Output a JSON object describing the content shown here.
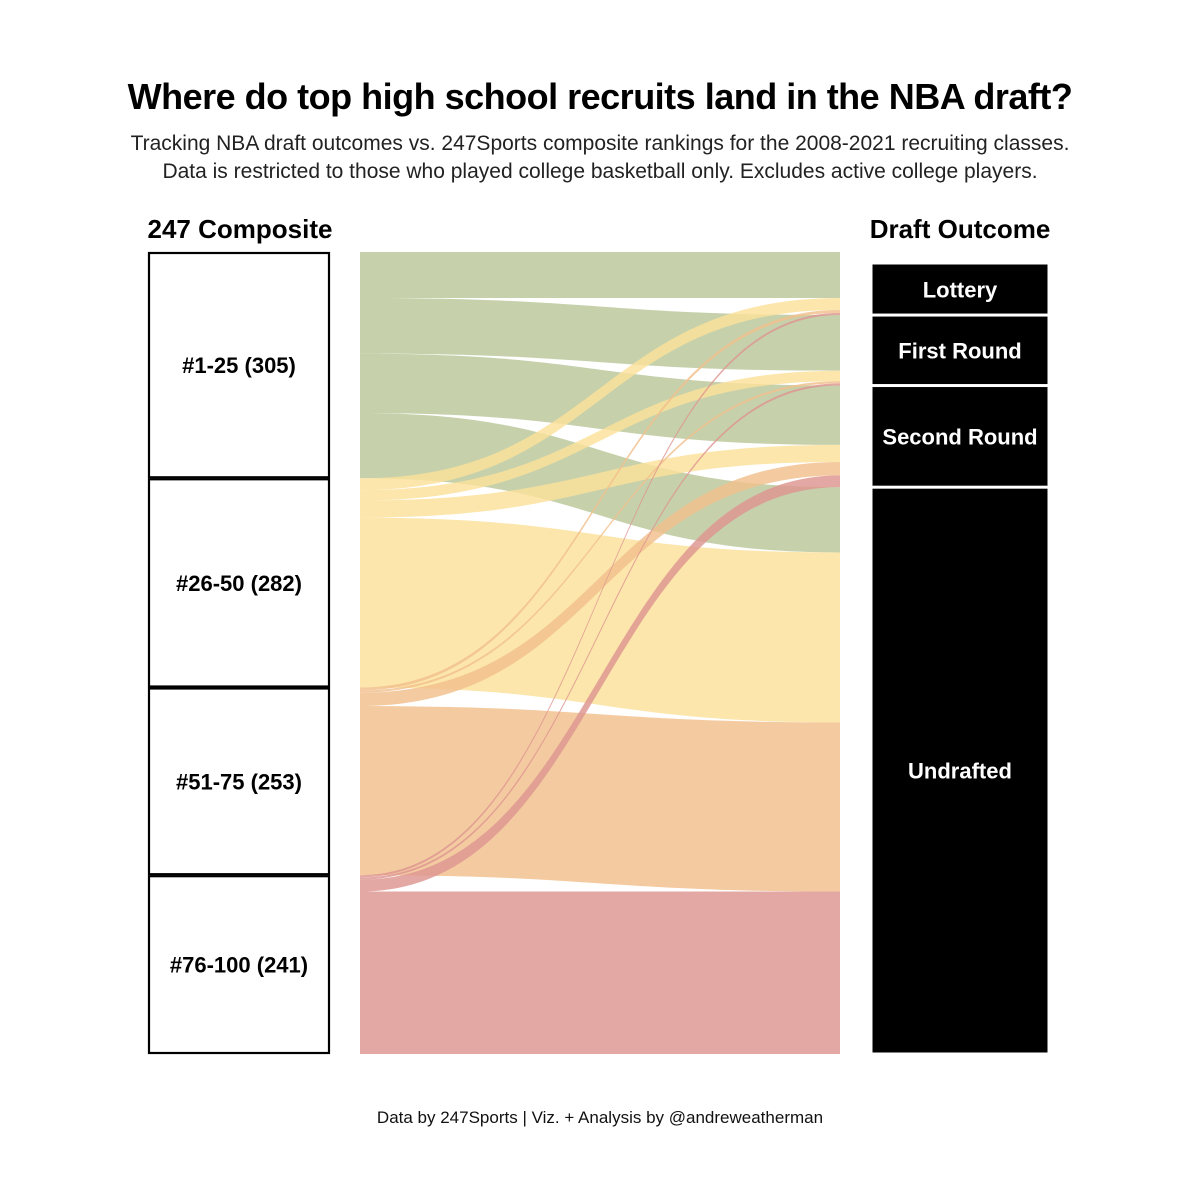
{
  "title": "Where do top high school recruits land in the NBA draft?",
  "subtitle": [
    "Tracking NBA draft outcomes vs. 247Sports composite rankings for the 2008-2021 recruiting classes.",
    "Data is restricted to those who played college basketball only. Excludes active college players."
  ],
  "left_header": "247 Composite",
  "right_header": "Draft Outcome",
  "footer": "Data by 247Sports | Viz. + Analysis by @andreweatherman",
  "colors": {
    "#1-25": "#b9c79a",
    "#26-50": "#fbe09a",
    "#51-75": "#f2bf8c",
    "#76-100": "#de9590",
    "outcome_fill": "#000000"
  },
  "chart_data": {
    "type": "sankey",
    "sources": [
      {
        "label": "#1-25 (305)",
        "name": "#1-25",
        "count": 305
      },
      {
        "label": "#26-50 (282)",
        "name": "#26-50",
        "count": 282
      },
      {
        "label": "#51-75 (253)",
        "name": "#51-75",
        "count": 253
      },
      {
        "label": "#76-100 (241)",
        "name": "#76-100",
        "count": 241
      }
    ],
    "targets": [
      {
        "label": "Lottery",
        "name": "Lottery"
      },
      {
        "label": "First Round",
        "name": "First Round"
      },
      {
        "label": "Second Round",
        "name": "Second Round"
      },
      {
        "label": "Undrafted",
        "name": "Undrafted"
      }
    ],
    "flows": [
      {
        "source": "#1-25",
        "target": "Lottery",
        "value": 62
      },
      {
        "source": "#1-25",
        "target": "First Round",
        "value": 75
      },
      {
        "source": "#1-25",
        "target": "Second Round",
        "value": 80
      },
      {
        "source": "#1-25",
        "target": "Undrafted",
        "value": 88
      },
      {
        "source": "#26-50",
        "target": "Lottery",
        "value": 16
      },
      {
        "source": "#26-50",
        "target": "First Round",
        "value": 14
      },
      {
        "source": "#26-50",
        "target": "Second Round",
        "value": 23
      },
      {
        "source": "#26-50",
        "target": "Undrafted",
        "value": 229
      },
      {
        "source": "#51-75",
        "target": "Lottery",
        "value": 4
      },
      {
        "source": "#51-75",
        "target": "First Round",
        "value": 3
      },
      {
        "source": "#51-75",
        "target": "Second Round",
        "value": 18
      },
      {
        "source": "#51-75",
        "target": "Undrafted",
        "value": 228
      },
      {
        "source": "#76-100",
        "target": "Lottery",
        "value": 3
      },
      {
        "source": "#76-100",
        "target": "First Round",
        "value": 3
      },
      {
        "source": "#76-100",
        "target": "Second Round",
        "value": 16
      },
      {
        "source": "#76-100",
        "target": "Undrafted",
        "value": 219
      }
    ]
  }
}
